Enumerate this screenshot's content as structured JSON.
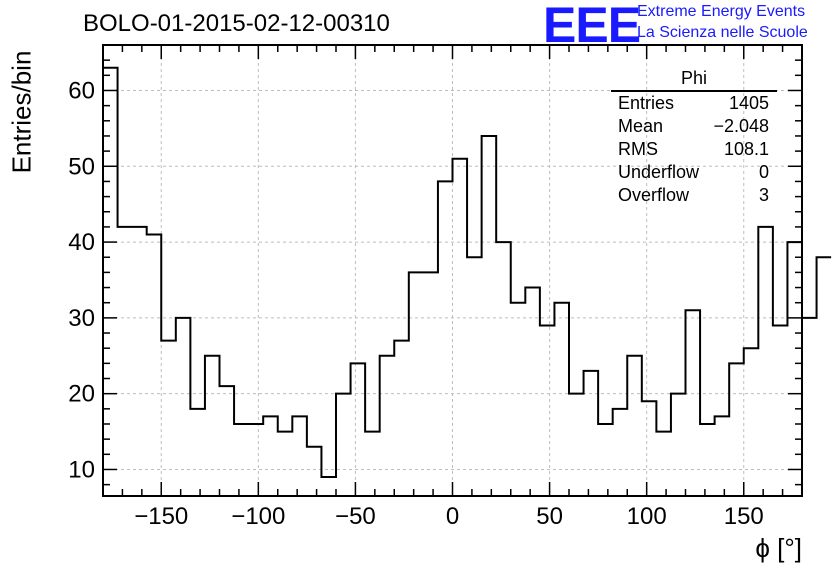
{
  "header": {
    "title": "BOLO-01-2015-02-12-00310",
    "logo_text": "EEE",
    "logo_line1": "Extreme Energy Events",
    "logo_line2": "La Scienza nelle Scuole"
  },
  "colors": {
    "logo": "#1a1aff",
    "grid": "#bdbdbd",
    "line": "#000000"
  },
  "stats": {
    "name": "Phi",
    "rows": [
      {
        "label": "Entries",
        "value": "1405"
      },
      {
        "label": "Mean",
        "value": "−2.048"
      },
      {
        "label": "RMS",
        "value": "108.1"
      },
      {
        "label": "Underflow",
        "value": "0"
      },
      {
        "label": "Overflow",
        "value": "3"
      }
    ]
  },
  "chart_data": {
    "type": "histogram",
    "xlabel": "ϕ [°]",
    "ylabel": "Entries/bin",
    "xlim": [
      -180,
      180
    ],
    "ylim": [
      6.5,
      66
    ],
    "xticks": [
      -150,
      -100,
      -50,
      0,
      50,
      100,
      150
    ],
    "xtick_labels": [
      "−150",
      "−100",
      "−50",
      "0",
      "50",
      "100",
      "150"
    ],
    "yticks": [
      10,
      20,
      30,
      40,
      50,
      60
    ],
    "grid": true,
    "bin_width": 7.5,
    "values": [
      63,
      42,
      42,
      41,
      27,
      30,
      18,
      25,
      21,
      16,
      16,
      17,
      15,
      17,
      13,
      9,
      20,
      24,
      15,
      25,
      27,
      36,
      36,
      48,
      51,
      38,
      54,
      40,
      32,
      34,
      29,
      32,
      20,
      23,
      16,
      18,
      25,
      19,
      15,
      20,
      31,
      16,
      17,
      24,
      26,
      42,
      29,
      40,
      30,
      38
    ]
  }
}
